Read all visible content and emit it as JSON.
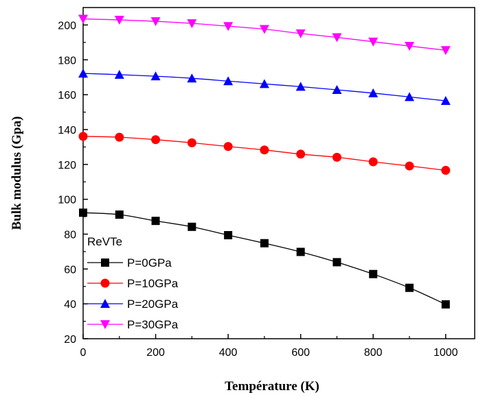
{
  "chart_data": {
    "type": "line",
    "title": "",
    "xlabel": "Température (K)",
    "ylabel": "Bulk modulus (Gpa)",
    "xlim": [
      0,
      1080
    ],
    "ylim": [
      20,
      210
    ],
    "xticks": [
      0,
      200,
      400,
      600,
      800,
      1000
    ],
    "yticks": [
      20,
      40,
      60,
      80,
      100,
      120,
      140,
      160,
      180,
      200
    ],
    "grid": false,
    "legend_position": "bottom-left",
    "legend_title": "ReVTe",
    "x": [
      0,
      100,
      200,
      300,
      400,
      500,
      600,
      700,
      800,
      900,
      1000
    ],
    "series": [
      {
        "name": "P=0GPa",
        "color": "#000000",
        "marker": "square",
        "values": [
          92.3,
          91.2,
          87.6,
          84.2,
          79.4,
          74.8,
          69.8,
          63.9,
          57.1,
          49.2,
          39.7
        ]
      },
      {
        "name": "P=10GPa",
        "color": "#ff0000",
        "marker": "circle",
        "values": [
          136.1,
          135.6,
          134.2,
          132.4,
          130.3,
          128.3,
          125.9,
          124.1,
          121.5,
          119.1,
          116.6
        ]
      },
      {
        "name": "P=20GPa",
        "color": "#0000ff",
        "marker": "triangle-up",
        "values": [
          172.2,
          171.5,
          170.6,
          169.4,
          167.8,
          166.2,
          164.6,
          162.8,
          160.9,
          158.7,
          156.5
        ]
      },
      {
        "name": "P=30GPa",
        "color": "#ff00ff",
        "marker": "triangle-down",
        "values": [
          203.5,
          202.9,
          202.1,
          200.9,
          199.3,
          197.6,
          195.1,
          192.9,
          190.4,
          187.9,
          185.5
        ]
      }
    ]
  }
}
